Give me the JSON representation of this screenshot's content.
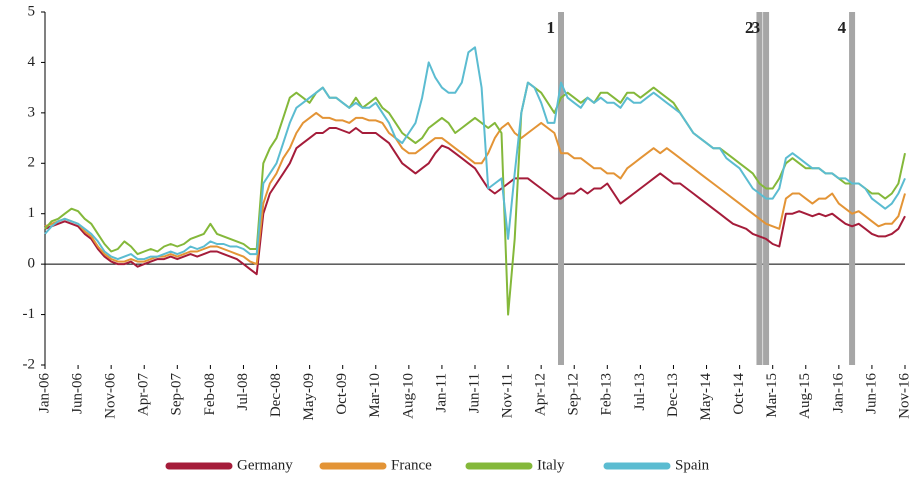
{
  "chart_data": {
    "type": "line",
    "categories": [
      "Jan-06",
      null,
      null,
      null,
      null,
      "Jun-06",
      null,
      null,
      null,
      null,
      "Nov-06",
      null,
      null,
      null,
      null,
      "Apr-07",
      null,
      null,
      null,
      null,
      "Sep-07",
      null,
      null,
      null,
      null,
      "Feb-08",
      null,
      null,
      null,
      null,
      "Jul-08",
      null,
      null,
      null,
      null,
      "Dec-08",
      null,
      null,
      null,
      null,
      "May-09",
      null,
      null,
      null,
      null,
      "Oct-09",
      null,
      null,
      null,
      null,
      "Mar-10",
      null,
      null,
      null,
      null,
      "Aug-10",
      null,
      null,
      null,
      null,
      "Jan-11",
      null,
      null,
      null,
      null,
      "Jun-11",
      null,
      null,
      null,
      null,
      "Nov-11",
      null,
      null,
      null,
      null,
      "Apr-12",
      null,
      null,
      null,
      null,
      "Sep-12",
      null,
      null,
      null,
      null,
      "Feb-13",
      null,
      null,
      null,
      null,
      "Jul-13",
      null,
      null,
      null,
      null,
      "Dec-13",
      null,
      null,
      null,
      null,
      "May-14",
      null,
      null,
      null,
      null,
      "Oct-14",
      null,
      null,
      null,
      null,
      "Mar-15",
      null,
      null,
      null,
      null,
      "Aug-15",
      null,
      null,
      null,
      null,
      "Jan-16",
      null,
      null,
      null,
      null,
      "Jun-16",
      null,
      null,
      null,
      null,
      "Nov-16"
    ],
    "series": [
      {
        "name": "Germany",
        "color": "#a51c3a",
        "values": [
          0.7,
          0.75,
          0.8,
          0.85,
          0.8,
          0.75,
          0.6,
          0.5,
          0.3,
          0.15,
          0.05,
          0.0,
          0.0,
          0.05,
          -0.05,
          0.0,
          0.05,
          0.1,
          0.1,
          0.15,
          0.1,
          0.15,
          0.2,
          0.15,
          0.2,
          0.25,
          0.25,
          0.2,
          0.15,
          0.1,
          0.0,
          -0.1,
          -0.2,
          1.0,
          1.4,
          1.6,
          1.8,
          2.0,
          2.3,
          2.4,
          2.5,
          2.6,
          2.6,
          2.7,
          2.7,
          2.65,
          2.6,
          2.7,
          2.6,
          2.6,
          2.6,
          2.5,
          2.4,
          2.2,
          2.0,
          1.9,
          1.8,
          1.9,
          2.0,
          2.2,
          2.35,
          2.3,
          2.2,
          2.1,
          2.0,
          1.9,
          1.7,
          1.5,
          1.4,
          1.5,
          1.6,
          1.7,
          1.7,
          1.7,
          1.6,
          1.5,
          1.4,
          1.3,
          1.3,
          1.4,
          1.4,
          1.5,
          1.4,
          1.5,
          1.5,
          1.6,
          1.4,
          1.2,
          1.3,
          1.4,
          1.5,
          1.6,
          1.7,
          1.8,
          1.7,
          1.6,
          1.6,
          1.5,
          1.4,
          1.3,
          1.2,
          1.1,
          1.0,
          0.9,
          0.8,
          0.75,
          0.7,
          0.6,
          0.55,
          0.5,
          0.4,
          0.35,
          1.0,
          1.0,
          1.05,
          1.0,
          0.95,
          1.0,
          0.95,
          1.0,
          0.9,
          0.8,
          0.75,
          0.8,
          0.7,
          0.6,
          0.55,
          0.55,
          0.6,
          0.7,
          0.95
        ]
      },
      {
        "name": "France",
        "color": "#e39436",
        "values": [
          0.75,
          0.8,
          0.85,
          0.9,
          0.85,
          0.8,
          0.65,
          0.55,
          0.35,
          0.2,
          0.1,
          0.05,
          0.05,
          0.1,
          0.05,
          0.05,
          0.1,
          0.15,
          0.15,
          0.2,
          0.15,
          0.2,
          0.25,
          0.25,
          0.3,
          0.35,
          0.35,
          0.3,
          0.25,
          0.2,
          0.15,
          0.05,
          0.0,
          1.2,
          1.6,
          1.8,
          2.1,
          2.3,
          2.6,
          2.8,
          2.9,
          3.0,
          2.9,
          2.9,
          2.85,
          2.85,
          2.8,
          2.9,
          2.9,
          2.85,
          2.85,
          2.8,
          2.6,
          2.5,
          2.3,
          2.2,
          2.2,
          2.3,
          2.4,
          2.5,
          2.5,
          2.4,
          2.3,
          2.2,
          2.1,
          2.0,
          2.0,
          2.2,
          2.5,
          2.7,
          2.8,
          2.6,
          2.5,
          2.6,
          2.7,
          2.8,
          2.7,
          2.6,
          2.2,
          2.2,
          2.1,
          2.1,
          2.0,
          1.9,
          1.9,
          1.8,
          1.8,
          1.7,
          1.9,
          2.0,
          2.1,
          2.2,
          2.3,
          2.2,
          2.3,
          2.2,
          2.1,
          2.0,
          1.9,
          1.8,
          1.7,
          1.6,
          1.5,
          1.4,
          1.3,
          1.2,
          1.1,
          1.0,
          0.9,
          0.8,
          0.75,
          0.7,
          1.3,
          1.4,
          1.4,
          1.3,
          1.2,
          1.3,
          1.3,
          1.4,
          1.2,
          1.1,
          1.0,
          1.05,
          0.95,
          0.85,
          0.75,
          0.8,
          0.8,
          0.95,
          1.4
        ]
      },
      {
        "name": "Italy",
        "color": "#84b83a",
        "values": [
          0.7,
          0.85,
          0.9,
          1.0,
          1.1,
          1.05,
          0.9,
          0.8,
          0.6,
          0.4,
          0.25,
          0.3,
          0.45,
          0.35,
          0.2,
          0.25,
          0.3,
          0.25,
          0.35,
          0.4,
          0.35,
          0.4,
          0.5,
          0.55,
          0.6,
          0.8,
          0.6,
          0.55,
          0.5,
          0.45,
          0.4,
          0.3,
          0.3,
          2.0,
          2.3,
          2.5,
          2.9,
          3.3,
          3.4,
          3.3,
          3.2,
          3.4,
          3.5,
          3.3,
          3.3,
          3.2,
          3.1,
          3.3,
          3.1,
          3.2,
          3.3,
          3.1,
          3.0,
          2.8,
          2.6,
          2.5,
          2.4,
          2.5,
          2.7,
          2.8,
          2.9,
          2.8,
          2.6,
          2.7,
          2.8,
          2.9,
          2.8,
          2.7,
          2.8,
          2.6,
          -1.0,
          0.5,
          3.0,
          3.6,
          3.5,
          3.4,
          3.2,
          3.0,
          3.3,
          3.4,
          3.3,
          3.2,
          3.3,
          3.2,
          3.4,
          3.4,
          3.3,
          3.2,
          3.4,
          3.4,
          3.3,
          3.4,
          3.5,
          3.4,
          3.3,
          3.2,
          3.0,
          2.8,
          2.6,
          2.5,
          2.4,
          2.3,
          2.3,
          2.2,
          2.1,
          2.0,
          1.9,
          1.8,
          1.6,
          1.5,
          1.5,
          1.7,
          2.0,
          2.1,
          2.0,
          1.9,
          1.9,
          1.9,
          1.8,
          1.8,
          1.7,
          1.6,
          1.6,
          1.6,
          1.5,
          1.4,
          1.4,
          1.3,
          1.4,
          1.6,
          2.2
        ]
      },
      {
        "name": "Spain",
        "color": "#5bbcd1",
        "values": [
          0.6,
          0.75,
          0.85,
          0.9,
          0.85,
          0.8,
          0.7,
          0.6,
          0.45,
          0.25,
          0.15,
          0.1,
          0.15,
          0.2,
          0.1,
          0.1,
          0.15,
          0.15,
          0.2,
          0.25,
          0.2,
          0.25,
          0.35,
          0.3,
          0.35,
          0.45,
          0.4,
          0.4,
          0.35,
          0.35,
          0.3,
          0.2,
          0.2,
          1.6,
          1.8,
          2.0,
          2.4,
          2.8,
          3.1,
          3.2,
          3.3,
          3.4,
          3.5,
          3.3,
          3.3,
          3.2,
          3.1,
          3.2,
          3.1,
          3.1,
          3.2,
          3.0,
          2.8,
          2.5,
          2.4,
          2.6,
          2.8,
          3.3,
          4.0,
          3.7,
          3.5,
          3.4,
          3.4,
          3.6,
          4.2,
          4.3,
          3.5,
          1.5,
          1.6,
          1.7,
          0.5,
          1.8,
          3.0,
          3.6,
          3.5,
          3.2,
          2.8,
          2.8,
          3.6,
          3.3,
          3.2,
          3.1,
          3.3,
          3.2,
          3.3,
          3.2,
          3.2,
          3.1,
          3.3,
          3.2,
          3.2,
          3.3,
          3.4,
          3.3,
          3.2,
          3.1,
          3.0,
          2.8,
          2.6,
          2.5,
          2.4,
          2.3,
          2.3,
          2.1,
          2.0,
          1.9,
          1.7,
          1.5,
          1.4,
          1.3,
          1.3,
          1.5,
          2.1,
          2.2,
          2.1,
          2.0,
          1.9,
          1.9,
          1.8,
          1.8,
          1.7,
          1.7,
          1.6,
          1.6,
          1.5,
          1.3,
          1.2,
          1.1,
          1.2,
          1.4,
          1.7
        ]
      }
    ],
    "annotations": [
      {
        "label": "1",
        "x": 78
      },
      {
        "label": "2",
        "x": 108
      },
      {
        "label": "3",
        "x": 109
      },
      {
        "label": "4",
        "x": 122
      }
    ],
    "ylim": [
      -2,
      5
    ],
    "yticks": [
      -2,
      -1,
      0,
      1,
      2,
      3,
      4,
      5
    ],
    "legend": "bottom"
  }
}
